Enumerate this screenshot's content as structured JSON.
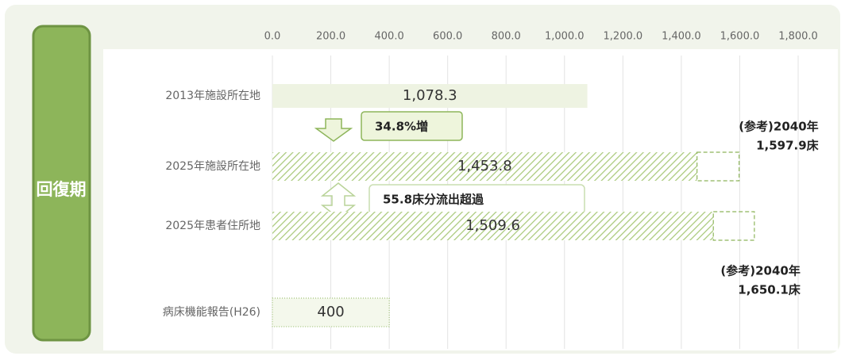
{
  "side_label": "回復期",
  "chart_data": {
    "type": "bar",
    "orientation": "horizontal",
    "categories": [
      "2013年施設所在地",
      "2025年施設所在地",
      "2025年患者住所地",
      "病床機能報告(H26)"
    ],
    "series": [
      {
        "values": [
          1078.3,
          1453.8,
          1509.6,
          400
        ],
        "value_labels": [
          "1,078.3",
          "1,453.8",
          "1,509.6",
          "400"
        ],
        "styles": [
          "solid",
          "hatched",
          "hatched",
          "dotted"
        ],
        "color": "#8db55a"
      }
    ],
    "reference": {
      "label": "(参考)2040年",
      "values": [
        null,
        1597.9,
        1650.1,
        null
      ],
      "value_labels": [
        null,
        "1,597.9床",
        "1,650.1床",
        null
      ]
    },
    "annotations": [
      "34.8%増",
      "55.8床分流出超過"
    ],
    "xlim": [
      0,
      1800
    ],
    "xticks": [
      {
        "value": 0,
        "label": "0.0"
      },
      {
        "value": 200,
        "label": "200.0"
      },
      {
        "value": 400,
        "label": "400.0"
      },
      {
        "value": 600,
        "label": "600.0"
      },
      {
        "value": 800,
        "label": "800.0"
      },
      {
        "value": 1000,
        "label": "1,000.0"
      },
      {
        "value": 1200,
        "label": "1,200.0"
      },
      {
        "value": 1400,
        "label": "1,400.0"
      },
      {
        "value": 1600,
        "label": "1,600.0"
      },
      {
        "value": 1800,
        "label": "1,800.0"
      }
    ],
    "grid": true
  }
}
